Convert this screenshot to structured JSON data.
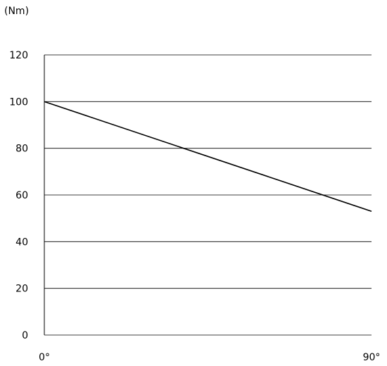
{
  "chart_data": {
    "type": "line",
    "title": "",
    "unit_label": "(Nm)",
    "xlabel": "",
    "ylabel": "",
    "x_tick_labels": [
      "0°",
      "90°"
    ],
    "y_ticks": [
      0,
      20,
      40,
      60,
      80,
      100,
      120
    ],
    "ylim": [
      0,
      120
    ],
    "xlim": [
      0,
      90
    ],
    "grid": "horizontal",
    "series": [
      {
        "x": [
          0,
          90
        ],
        "values": [
          100,
          53
        ]
      }
    ]
  }
}
